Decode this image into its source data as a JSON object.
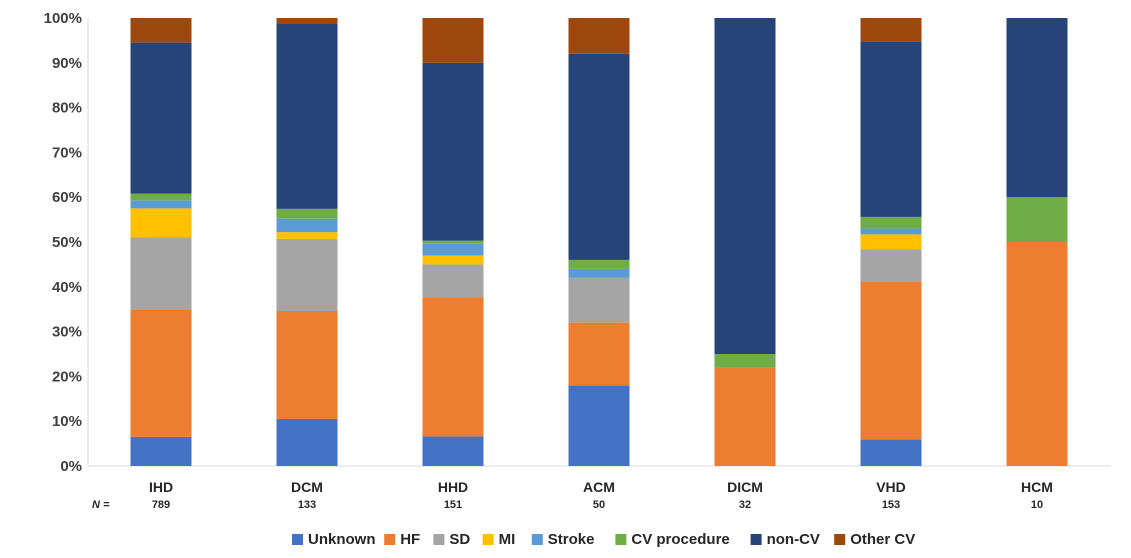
{
  "chart_data": {
    "type": "bar",
    "stacked": true,
    "percent": true,
    "categories": [
      "IHD",
      "DCM",
      "HHD",
      "ACM",
      "DICM",
      "VHD",
      "HCM"
    ],
    "n_label": "N =",
    "n_values": [
      "789",
      "133",
      "151",
      "50",
      "32",
      "153",
      "10"
    ],
    "ylim": [
      0,
      100
    ],
    "yticks": [
      "0%",
      "10%",
      "20%",
      "30%",
      "40%",
      "50%",
      "60%",
      "70%",
      "80%",
      "90%",
      "100%"
    ],
    "legend_position": "bottom",
    "grid": false,
    "series": [
      {
        "name": "Unknown",
        "color": "#4472C4",
        "values": [
          6.5,
          10.5,
          6.6,
          18,
          0,
          5.9,
          0
        ]
      },
      {
        "name": "HF",
        "color": "#ED7D31",
        "values": [
          28.5,
          24.1,
          31.1,
          14,
          21.9,
          35.3,
          50
        ]
      },
      {
        "name": "SD",
        "color": "#A5A5A5",
        "values": [
          16.0,
          16.1,
          7.3,
          10,
          0,
          7.2,
          0
        ]
      },
      {
        "name": "MI",
        "color": "#FFC000",
        "values": [
          6.5,
          1.5,
          2.0,
          0,
          0,
          3.3,
          0
        ]
      },
      {
        "name": "Stroke",
        "color": "#5B9BD5",
        "values": [
          1.8,
          3.0,
          2.6,
          2,
          0,
          1.3,
          0
        ]
      },
      {
        "name": "CV procedure",
        "color": "#70AD47",
        "values": [
          1.5,
          2.2,
          0.7,
          2,
          3.1,
          2.6,
          10
        ]
      },
      {
        "name": "non-CV",
        "color": "#264478",
        "values": [
          33.7,
          41.4,
          39.7,
          46,
          75.0,
          39.2,
          40
        ]
      },
      {
        "name": "Other CV",
        "color": "#9E480E",
        "values": [
          5.5,
          1.2,
          10.0,
          8,
          0,
          5.2,
          0
        ]
      }
    ]
  }
}
